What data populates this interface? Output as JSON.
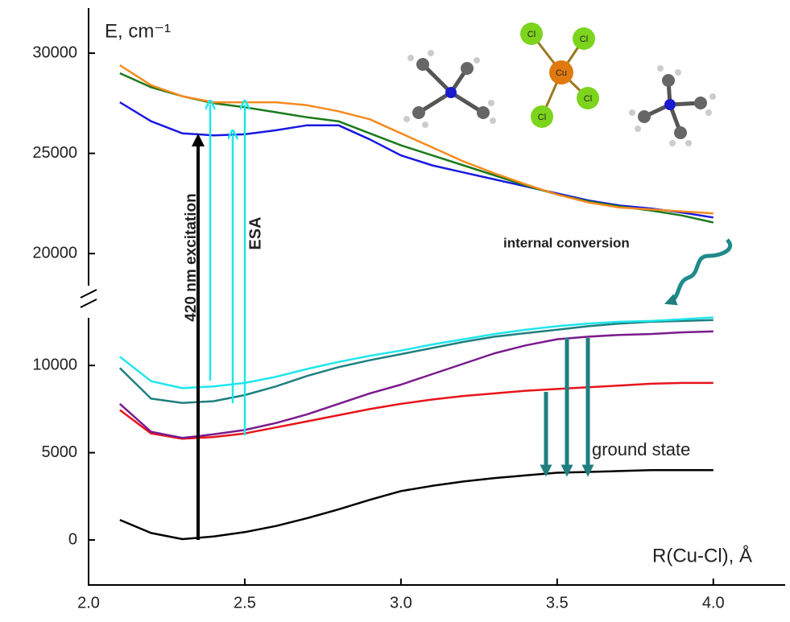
{
  "chart_data": {
    "type": "line",
    "y_label": "E, cm⁻¹",
    "x_label": "R(Cu-Cl), Å",
    "annotations": [
      "420 nm excitation",
      "ESA",
      "internal conversion",
      "ground state"
    ],
    "molecule": {
      "center": "Cu",
      "ligands": [
        "Cl",
        "Cl",
        "Cl",
        "Cl"
      ]
    },
    "xlim": [
      2.0,
      4.23
    ],
    "xticks": [
      {
        "value": 2.0,
        "label": "2.0"
      },
      {
        "value": 2.5,
        "label": "2.5"
      },
      {
        "value": 3.0,
        "label": "3.0"
      },
      {
        "value": 3.5,
        "label": "3.5"
      },
      {
        "value": 4.0,
        "label": "4.0"
      }
    ],
    "y_segments": [
      {
        "ylim": [
          -2580,
          13650
        ],
        "yticks": [
          0,
          5000,
          10000
        ]
      },
      {
        "ylim": [
          18400,
          32250
        ],
        "yticks": [
          20000,
          25000,
          30000
        ]
      }
    ],
    "x": [
      2.1,
      2.2,
      2.3,
      2.4,
      2.5,
      2.6,
      2.7,
      2.8,
      2.9,
      3.0,
      3.1,
      3.2,
      3.3,
      3.4,
      3.5,
      3.6,
      3.7,
      3.8,
      3.9,
      4.0
    ],
    "series": [
      {
        "color": "#000000",
        "segment": 0,
        "values": [
          1150,
          400,
          50,
          200,
          450,
          800,
          1250,
          1750,
          2300,
          2800,
          3100,
          3350,
          3550,
          3700,
          3850,
          3900,
          3950,
          4000,
          4000,
          4000
        ]
      },
      {
        "color": "#e8141b",
        "segment": 0,
        "values": [
          7450,
          6100,
          5800,
          5900,
          6100,
          6450,
          6800,
          7150,
          7500,
          7800,
          8050,
          8250,
          8400,
          8550,
          8650,
          8750,
          8850,
          8950,
          9000,
          9000
        ]
      },
      {
        "color": "#7a1a8c",
        "segment": 0,
        "values": [
          7800,
          6200,
          5850,
          6050,
          6300,
          6700,
          7200,
          7800,
          8400,
          8900,
          9500,
          10100,
          10700,
          11150,
          11500,
          11650,
          11750,
          11800,
          11900,
          11950
        ]
      },
      {
        "color": "#1f7f7f",
        "segment": 0,
        "values": [
          9850,
          8100,
          7850,
          7950,
          8300,
          8800,
          9400,
          9900,
          10300,
          10650,
          11000,
          11350,
          11650,
          11850,
          12050,
          12250,
          12400,
          12500,
          12550,
          12600
        ]
      },
      {
        "color": "#1ee6ec",
        "segment": 0,
        "values": [
          10500,
          9100,
          8700,
          8800,
          9000,
          9350,
          9800,
          10200,
          10550,
          10850,
          11200,
          11500,
          11800,
          12050,
          12250,
          12400,
          12500,
          12550,
          12650,
          12750
        ]
      },
      {
        "color": "#1a1adf",
        "segment": 1,
        "values": [
          27550,
          26600,
          26000,
          25900,
          25950,
          26150,
          26400,
          26400,
          25700,
          24900,
          24400,
          24050,
          23700,
          23350,
          23000,
          22650,
          22400,
          22250,
          22050,
          21800
        ]
      },
      {
        "color": "#1b7a1b",
        "segment": 1,
        "values": [
          29000,
          28300,
          27850,
          27500,
          27300,
          27050,
          26800,
          26600,
          26000,
          25400,
          24900,
          24400,
          23900,
          23400,
          22950,
          22600,
          22350,
          22150,
          21900,
          21550
        ]
      },
      {
        "color": "#f58a1f",
        "segment": 1,
        "values": [
          29400,
          28400,
          27850,
          27550,
          27550,
          27550,
          27400,
          27100,
          26700,
          26000,
          25300,
          24600,
          24000,
          23450,
          22950,
          22550,
          22300,
          22200,
          22100,
          22000
        ]
      }
    ]
  }
}
